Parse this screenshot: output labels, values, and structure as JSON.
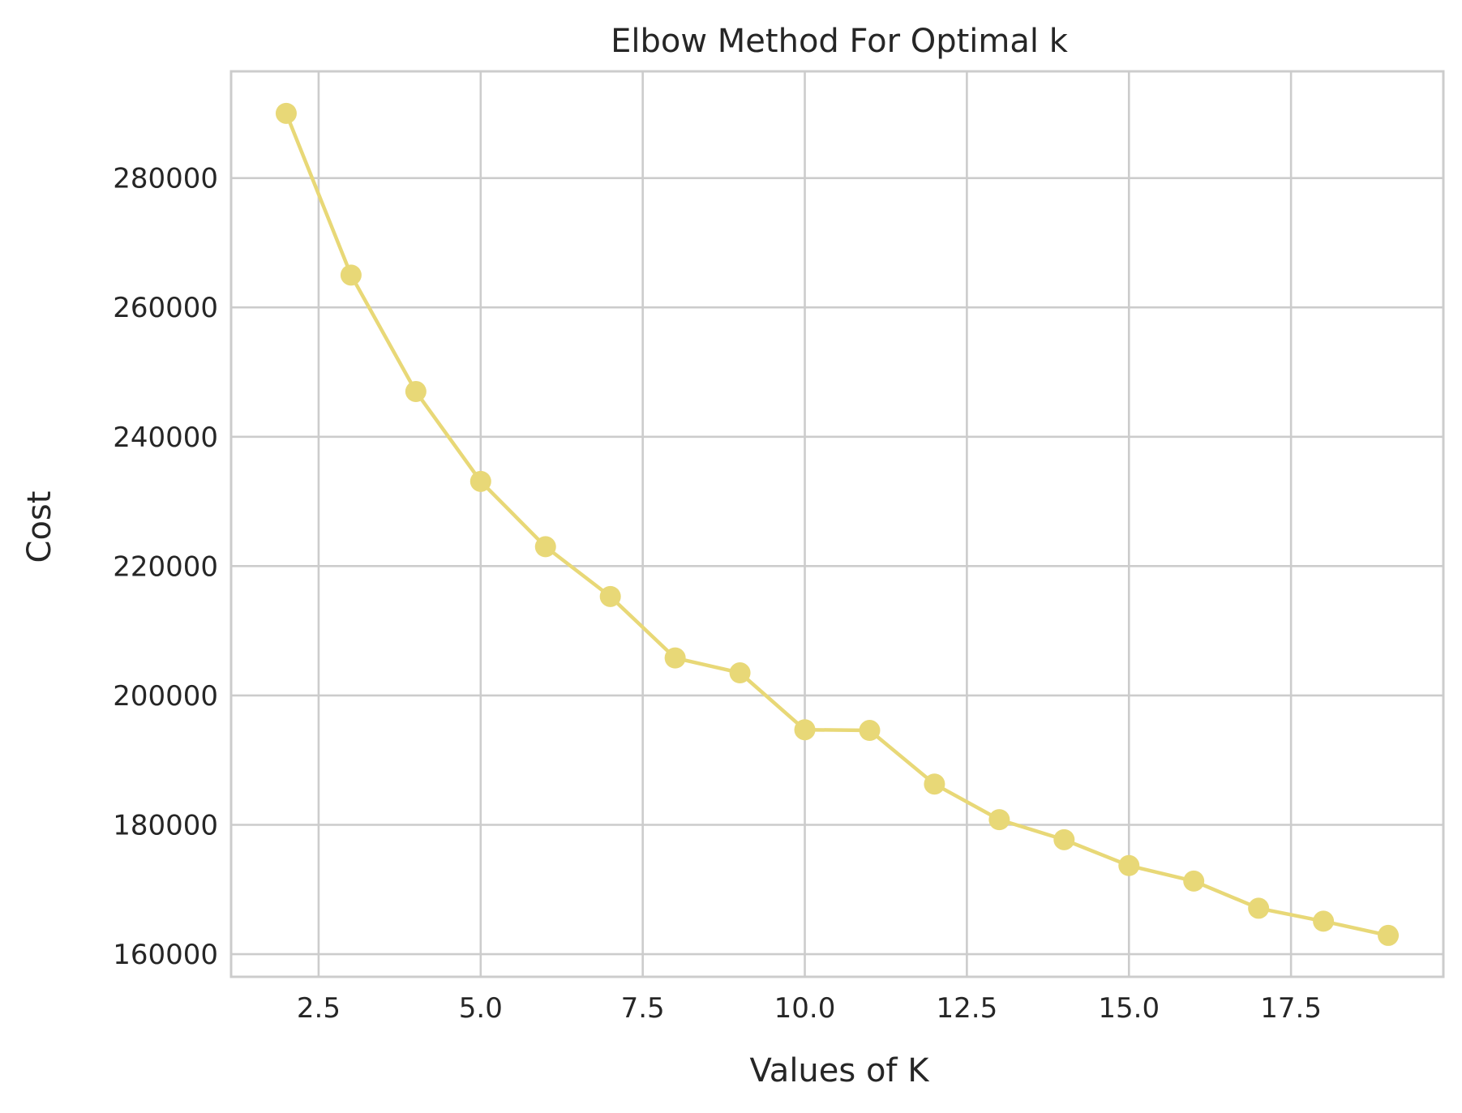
{
  "chart_data": {
    "type": "line",
    "title": "Elbow Method For Optimal k",
    "xlabel": "Values of K",
    "ylabel": "Cost",
    "xlim": [
      1.15,
      19.85
    ],
    "ylim": [
      156500,
      296500
    ],
    "x_ticks": [
      2.5,
      5.0,
      7.5,
      10.0,
      12.5,
      15.0,
      17.5
    ],
    "x_tick_labels": [
      "2.5",
      "5.0",
      "7.5",
      "10.0",
      "12.5",
      "15.0",
      "17.5"
    ],
    "y_ticks": [
      160000,
      180000,
      200000,
      220000,
      240000,
      260000,
      280000
    ],
    "y_tick_labels": [
      "160000",
      "180000",
      "200000",
      "220000",
      "240000",
      "260000",
      "280000"
    ],
    "grid": true,
    "series": [
      {
        "color": "#e8d877",
        "marker": "circle",
        "x": [
          2,
          3,
          4,
          5,
          6,
          7,
          8,
          9,
          10,
          11,
          12,
          13,
          14,
          15,
          16,
          17,
          18,
          19
        ],
        "values": [
          290000,
          265000,
          247000,
          233100,
          223000,
          215300,
          205800,
          203500,
          194700,
          194600,
          186300,
          180800,
          177700,
          173700,
          171300,
          167100,
          165100,
          162900
        ]
      }
    ]
  }
}
